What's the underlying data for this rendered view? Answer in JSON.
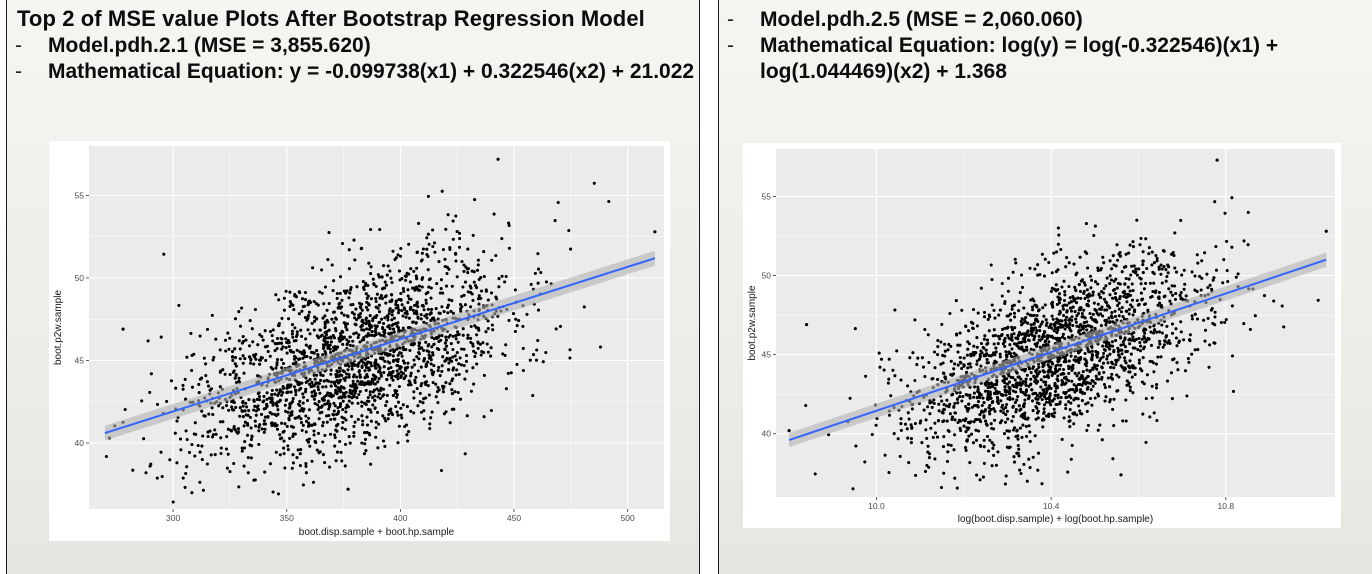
{
  "slide": {
    "title": "Top 2 of MSE value Plots After Bootstrap Regression Model",
    "left": {
      "model_line": "Model.pdh.2.1 (MSE =  3,855.620)",
      "equation_line": "Mathematical Equation: y = -0.099738(x1) + 0.322546(x2) +  21.022"
    },
    "right": {
      "model_line": "Model.pdh.2.5 (MSE =  2,060.060)",
      "equation_line": "Mathematical Equation: log(y) = log(-0.322546)(x1) + log(1.044469)(x2) +  1.368"
    },
    "bullet_marker": "-"
  },
  "colors": {
    "panel_bg": "#ebeae4",
    "plot_bg": "#ebebeb",
    "grid": "#ffffff",
    "points": "#000000",
    "fit_line": "#3366ff",
    "conf_band": "#b3b3b3"
  },
  "chart_data": [
    {
      "id": "left-scatter",
      "type": "scatter",
      "title": "",
      "xlabel": "boot.disp.sample + boot.hp.sample",
      "ylabel": "boot.p2w.sample",
      "xlim": [
        263,
        516
      ],
      "ylim": [
        36,
        58
      ],
      "xticks": [
        300,
        350,
        400,
        450,
        500
      ],
      "yticks": [
        40,
        45,
        50,
        55
      ],
      "tick_labels_x": [
        "300",
        "350",
        "400",
        "450",
        "500"
      ],
      "tick_labels_y": [
        "40",
        "45",
        "50",
        "55"
      ],
      "cloud": {
        "n": 2200,
        "x_mean": 378,
        "x_sd": 36,
        "y_mean": 44.9,
        "y_sd": 3.1,
        "corr": 0.52,
        "seed": 17
      },
      "notable_points": [
        {
          "x": 443,
          "y": 57.2
        },
        {
          "x": 278,
          "y": 46.9
        },
        {
          "x": 512,
          "y": 52.8
        },
        {
          "x": 377,
          "y": 37.2
        },
        {
          "x": 272,
          "y": 40.3
        }
      ],
      "fit": {
        "x0": 270,
        "y0": 40.6,
        "x1": 512,
        "y1": 51.2
      },
      "grid": true
    },
    {
      "id": "right-scatter",
      "type": "scatter",
      "title": "",
      "xlabel": "log(boot.disp.sample) + log(boot.hp.sample)",
      "ylabel": "boot.p2w.sample",
      "xlim": [
        9.77,
        11.05
      ],
      "ylim": [
        36,
        58
      ],
      "xticks": [
        10.0,
        10.4,
        10.8
      ],
      "yticks": [
        40,
        45,
        50,
        55
      ],
      "tick_labels_x": [
        "10.0",
        "10.4",
        "10.8"
      ],
      "tick_labels_y": [
        "40",
        "45",
        "50",
        "55"
      ],
      "cloud": {
        "n": 2200,
        "x_mean": 10.41,
        "x_sd": 0.17,
        "y_mean": 45.0,
        "y_sd": 3.1,
        "corr": 0.56,
        "seed": 29
      },
      "notable_points": [
        {
          "x": 10.78,
          "y": 57.3
        },
        {
          "x": 9.84,
          "y": 46.9
        },
        {
          "x": 11.03,
          "y": 52.8
        },
        {
          "x": 10.56,
          "y": 37.4
        },
        {
          "x": 9.8,
          "y": 40.2
        }
      ],
      "fit": {
        "x0": 9.8,
        "y0": 39.6,
        "x1": 11.03,
        "y1": 51.0
      },
      "grid": true
    }
  ]
}
